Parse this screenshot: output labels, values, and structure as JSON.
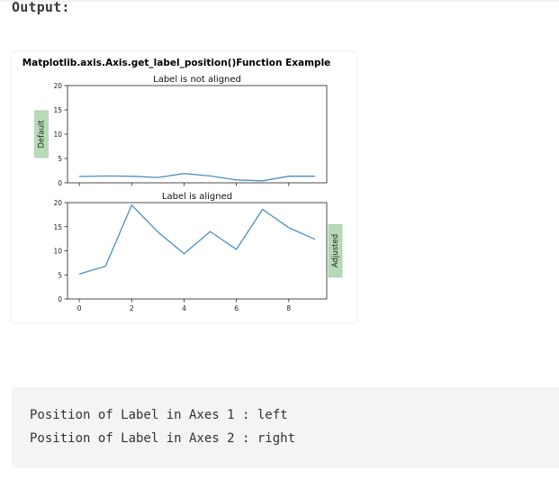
{
  "page": {
    "heading": "Output:"
  },
  "figure": {
    "suptitle": "Matplotlib.axis.Axis.get_label_position()Function Example"
  },
  "chart_data": [
    {
      "type": "line",
      "title": "Label is not aligned",
      "ylabel": "Default",
      "ylabel_position": "left",
      "ylim": [
        0,
        20
      ],
      "yticks": [
        0,
        5,
        10,
        15,
        20
      ],
      "xlim": [
        -0.45,
        9.45
      ],
      "xticks": [
        0,
        2,
        4,
        6,
        8
      ],
      "x_tick_labels_visible": false,
      "x": [
        0,
        1,
        2,
        3,
        4,
        5,
        6,
        7,
        8,
        9
      ],
      "y": [
        1.3,
        1.4,
        1.35,
        1.1,
        1.9,
        1.4,
        0.6,
        0.4,
        1.35,
        1.35
      ],
      "color": "#4a8fc2",
      "label_box_color": "#b7dbb7"
    },
    {
      "type": "line",
      "title": "Label is aligned",
      "ylabel": "Adjusted",
      "ylabel_position": "right",
      "ylim": [
        0,
        20
      ],
      "yticks": [
        0,
        5,
        10,
        15,
        20
      ],
      "xlim": [
        -0.45,
        9.45
      ],
      "xticks": [
        0,
        2,
        4,
        6,
        8
      ],
      "x_tick_labels_visible": true,
      "x": [
        0,
        1,
        2,
        3,
        4,
        5,
        6,
        7,
        8,
        9
      ],
      "y": [
        5.2,
        6.8,
        19.5,
        13.9,
        9.4,
        14.0,
        10.3,
        18.6,
        14.8,
        12.4
      ],
      "color": "#4a8fc2",
      "label_box_color": "#b7dbb7"
    }
  ],
  "console": {
    "lines": [
      "Position of Label in Axes 1 : left",
      "Position of Label in Axes 2 : right"
    ]
  }
}
